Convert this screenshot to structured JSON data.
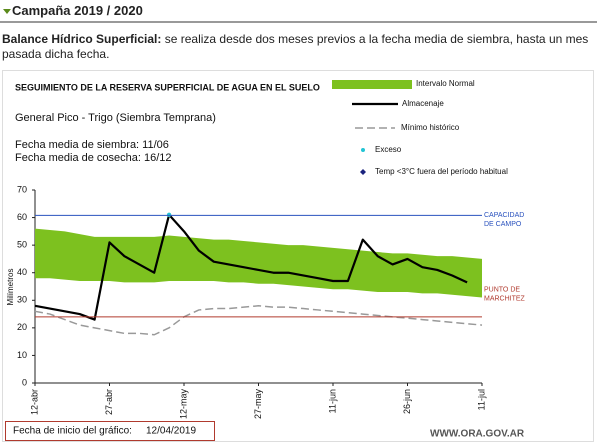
{
  "header": {
    "title": "Campaña 2019 / 2020",
    "intro_bold": "Balance Hídrico Superficial:",
    "intro_text": "se realiza desde dos meses previos a la fecha media de siembra, hasta un mes pasada dicha fecha."
  },
  "chart_data": {
    "type": "line",
    "title": "SEGUIMIENTO DE LA RESERVA SUPERFICIAL DE AGUA EN EL SUELO",
    "subtitle": "General Pico - Trigo (Siembra Temprana)",
    "notes": [
      "Fecha media de siembra: 11/06",
      "Fecha media de cosecha: 16/12"
    ],
    "y_label": "Milímetros",
    "categories": [
      "12-abr",
      null,
      null,
      null,
      null,
      "27-abr",
      null,
      null,
      null,
      null,
      "12-may",
      null,
      null,
      null,
      null,
      "27-may",
      null,
      null,
      null,
      null,
      "11-jun",
      null,
      null,
      null,
      null,
      "26-jun",
      null,
      null,
      null,
      null,
      "11-jul"
    ],
    "ylim": [
      0,
      70
    ],
    "yticks": [
      0,
      10,
      20,
      30,
      40,
      50,
      60,
      70
    ],
    "series": [
      {
        "name": "Intervalo Normal",
        "color": "#7dc11f",
        "upper": [
          56,
          55.5,
          55,
          54,
          53,
          53,
          53,
          53,
          53,
          53.5,
          53,
          52.5,
          52,
          52,
          51.5,
          51,
          50.5,
          50,
          50,
          49.5,
          49,
          48.5,
          48,
          47.5,
          47,
          47,
          46.5,
          46,
          46,
          45.5,
          45
        ],
        "lower": [
          38,
          38,
          37.5,
          37,
          37,
          37,
          36.5,
          36.5,
          36.5,
          37,
          37,
          37,
          37,
          36.5,
          36.5,
          36,
          36,
          35.5,
          35,
          34.5,
          34,
          34,
          33.5,
          33,
          33,
          33,
          32.5,
          32.5,
          32,
          31.5,
          31
        ]
      },
      {
        "name": "Almacenaje",
        "color": "#000000",
        "values": [
          28,
          27,
          26,
          25,
          23,
          51,
          46,
          43,
          40,
          61,
          55,
          48,
          44,
          43,
          42,
          41,
          40,
          40,
          39,
          38,
          37,
          37,
          52,
          46,
          43,
          45,
          42,
          41,
          39,
          36.5,
          null
        ]
      },
      {
        "name": "Mínimo histórico",
        "color": "#999999",
        "dash": true,
        "values": [
          26,
          25,
          23,
          21,
          20,
          19,
          18,
          18,
          17.5,
          20,
          24,
          26.5,
          27,
          27,
          27.5,
          28,
          27.5,
          27.5,
          27,
          26.5,
          26,
          25.5,
          25,
          24.5,
          24,
          23.5,
          23,
          22.5,
          22,
          21.5,
          21
        ]
      },
      {
        "name": "Exceso",
        "color": "#22c4d4",
        "marker": "circle",
        "values": [
          null,
          null,
          null,
          null,
          null,
          null,
          null,
          null,
          null,
          61,
          null,
          null,
          null,
          null,
          null,
          null,
          null,
          null,
          null,
          null,
          null,
          null,
          null,
          null,
          null,
          null,
          null,
          null,
          null,
          null,
          null
        ]
      },
      {
        "name": "Temp <3°C fuera del período habitual",
        "color": "#1a237e",
        "marker": "diamond",
        "values": [
          null,
          null,
          null,
          null,
          null,
          null,
          null,
          null,
          null,
          null,
          null,
          null,
          null,
          null,
          null,
          null,
          null,
          null,
          null,
          null,
          null,
          null,
          null,
          null,
          null,
          null,
          null,
          null,
          null,
          null,
          null
        ]
      }
    ],
    "reference_lines": [
      {
        "label": [
          "CAPACIDAD",
          "DE  CAMPO"
        ],
        "value": 60.8,
        "color": "#2a52be"
      },
      {
        "label": [
          "PUNTO DE",
          "MARCHITEZ"
        ],
        "value": 24,
        "color": "#b03a2e"
      }
    ]
  },
  "footer": {
    "start_label": "Fecha de inicio del gráfico:",
    "start_date": "12/04/2019",
    "site": "WWW.ORA.GOV.AR"
  }
}
